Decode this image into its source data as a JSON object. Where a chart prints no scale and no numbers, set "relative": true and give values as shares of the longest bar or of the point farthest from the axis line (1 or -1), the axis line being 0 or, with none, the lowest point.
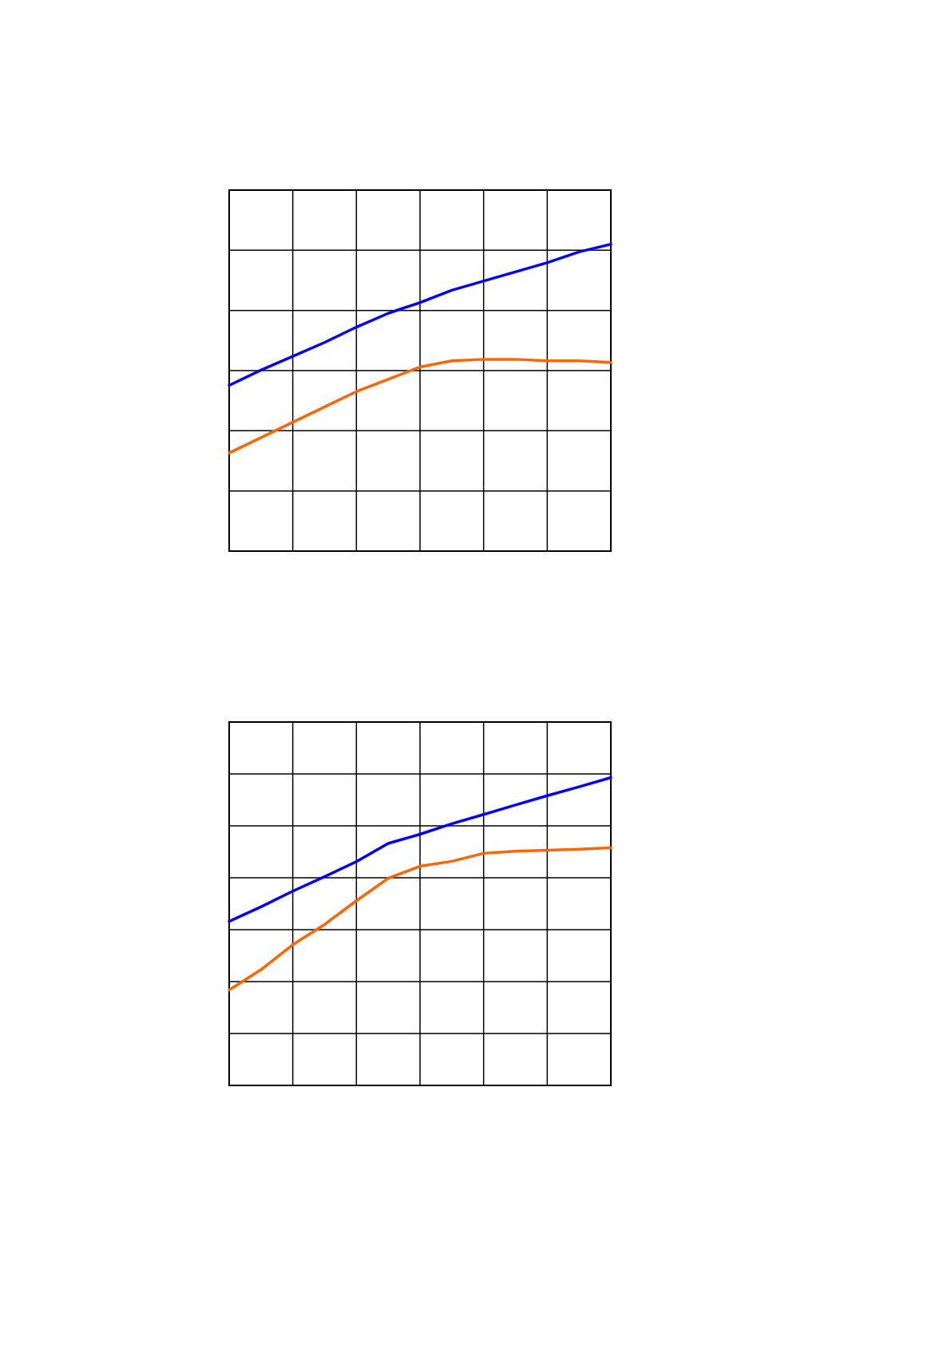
{
  "chart_data": [
    {
      "type": "line",
      "relative": true,
      "grid": true,
      "line_style": "solid",
      "categories": [
        null,
        null,
        null,
        null,
        null,
        null,
        null,
        null,
        null,
        null,
        null,
        null,
        null
      ],
      "series": [
        {
          "color": "#0000ff",
          "values": [
            0.54,
            0.59,
            0.635,
            0.68,
            0.73,
            0.775,
            0.81,
            0.85,
            0.88,
            0.91,
            0.94,
            0.975,
            1
          ]
        },
        {
          "color": "#ff6600",
          "values": [
            0.32,
            0.37,
            0.42,
            0.47,
            0.52,
            0.56,
            0.6,
            0.62,
            0.625,
            0.625,
            0.62,
            0.62,
            0.615
          ]
        }
      ]
    },
    {
      "type": "line",
      "relative": true,
      "grid": true,
      "line_style": "solid",
      "categories": [
        null,
        null,
        null,
        null,
        null,
        null,
        null,
        null,
        null,
        null,
        null,
        null,
        null
      ],
      "series": [
        {
          "color": "#0000ff",
          "values": [
            0.533,
            0.58,
            0.631,
            0.678,
            0.727,
            0.786,
            0.816,
            0.85,
            0.88,
            0.911,
            0.941,
            0.97,
            1
          ]
        },
        {
          "color": "#ff6600",
          "values": [
            0.31,
            0.376,
            0.457,
            0.523,
            0.6,
            0.673,
            0.712,
            0.728,
            0.754,
            0.761,
            0.764,
            0.767,
            0.772
          ]
        }
      ]
    }
  ]
}
